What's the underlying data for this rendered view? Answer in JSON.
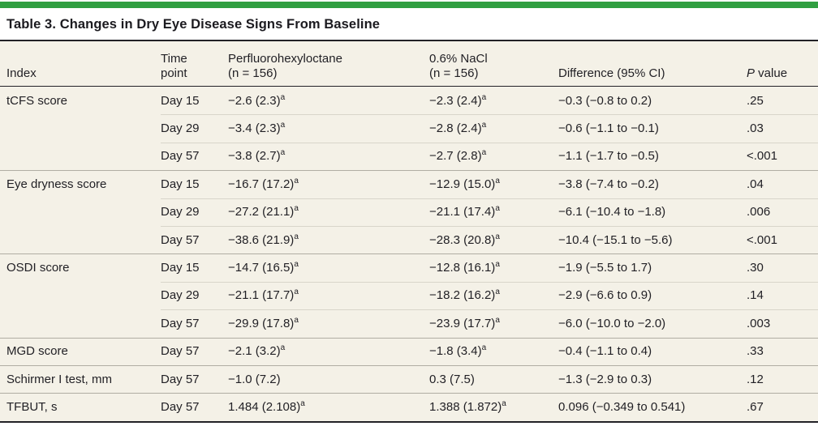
{
  "colors": {
    "accent_bar_green": "#319f41",
    "table_background_beige": "#f4f1e7",
    "rule_dark": "#222126",
    "row_divider_light": "#d8d5ca",
    "group_divider": "#b0ada3",
    "text": "#201f24"
  },
  "table": {
    "title": "Table 3. Changes in Dry Eye Disease Signs From Baseline",
    "columns": {
      "index": "Index",
      "time": {
        "l1": "Time",
        "l2": "point"
      },
      "pfho": {
        "l1": "Perfluorohexyloctane",
        "l2": "(n = 156)"
      },
      "nacl": {
        "l1": "0.6% NaCl",
        "l2": "(n = 156)"
      },
      "diff": "Difference (95% CI)",
      "pvalue": {
        "italic": "P",
        "rest": " value"
      }
    },
    "rows": [
      {
        "index": "tCFS score",
        "group_start": true,
        "time": "Day 15",
        "pfho": "−2.6 (2.3)",
        "pfho_sup": "a",
        "nacl": "−2.3 (2.4)",
        "nacl_sup": "a",
        "diff": "−0.3 (−0.8 to 0.2)",
        "p": ".25"
      },
      {
        "index": "",
        "group_start": false,
        "time": "Day 29",
        "pfho": "−3.4 (2.3)",
        "pfho_sup": "a",
        "nacl": "−2.8 (2.4)",
        "nacl_sup": "a",
        "diff": "−0.6 (−1.1 to −0.1)",
        "p": ".03"
      },
      {
        "index": "",
        "group_start": false,
        "time": "Day 57",
        "pfho": "−3.8 (2.7)",
        "pfho_sup": "a",
        "nacl": "−2.7 (2.8)",
        "nacl_sup": "a",
        "diff": "−1.1 (−1.7 to −0.5)",
        "p": "<.001"
      },
      {
        "index": "Eye dryness score",
        "group_start": true,
        "time": "Day 15",
        "pfho": "−16.7 (17.2)",
        "pfho_sup": "a",
        "nacl": "−12.9 (15.0)",
        "nacl_sup": "a",
        "diff": "−3.8 (−7.4 to −0.2)",
        "p": ".04"
      },
      {
        "index": "",
        "group_start": false,
        "time": "Day 29",
        "pfho": "−27.2 (21.1)",
        "pfho_sup": "a",
        "nacl": "−21.1 (17.4)",
        "nacl_sup": "a",
        "diff": "−6.1 (−10.4 to −1.8)",
        "p": ".006"
      },
      {
        "index": "",
        "group_start": false,
        "time": "Day 57",
        "pfho": "−38.6 (21.9)",
        "pfho_sup": "a",
        "nacl": "−28.3 (20.8)",
        "nacl_sup": "a",
        "diff": "−10.4 (−15.1 to −5.6)",
        "p": "<.001"
      },
      {
        "index": "OSDI score",
        "group_start": true,
        "time": "Day 15",
        "pfho": "−14.7 (16.5)",
        "pfho_sup": "a",
        "nacl": "−12.8 (16.1)",
        "nacl_sup": "a",
        "diff": "−1.9 (−5.5 to 1.7)",
        "p": ".30"
      },
      {
        "index": "",
        "group_start": false,
        "time": "Day 29",
        "pfho": "−21.1 (17.7)",
        "pfho_sup": "a",
        "nacl": "−18.2 (16.2)",
        "nacl_sup": "a",
        "diff": "−2.9 (−6.6 to 0.9)",
        "p": ".14"
      },
      {
        "index": "",
        "group_start": false,
        "time": "Day 57",
        "pfho": "−29.9 (17.8)",
        "pfho_sup": "a",
        "nacl": "−23.9 (17.7)",
        "nacl_sup": "a",
        "diff": "−6.0 (−10.0 to −2.0)",
        "p": ".003"
      },
      {
        "index": "MGD score",
        "group_start": true,
        "time": "Day 57",
        "pfho": "−2.1 (3.2)",
        "pfho_sup": "a",
        "nacl": "−1.8 (3.4)",
        "nacl_sup": "a",
        "diff": "−0.4 (−1.1 to 0.4)",
        "p": ".33"
      },
      {
        "index": "Schirmer I test, mm",
        "group_start": true,
        "time": "Day 57",
        "pfho": "−1.0 (7.2)",
        "pfho_sup": "",
        "nacl": "0.3 (7.5)",
        "nacl_sup": "",
        "diff": "−1.3 (−2.9 to 0.3)",
        "p": ".12"
      },
      {
        "index": "TFBUT, s",
        "group_start": true,
        "time": "Day 57",
        "pfho": "1.484 (2.108)",
        "pfho_sup": "a",
        "nacl": "1.388 (1.872)",
        "nacl_sup": "a",
        "diff": "0.096 (−0.349 to 0.541)",
        "p": ".67"
      }
    ]
  }
}
